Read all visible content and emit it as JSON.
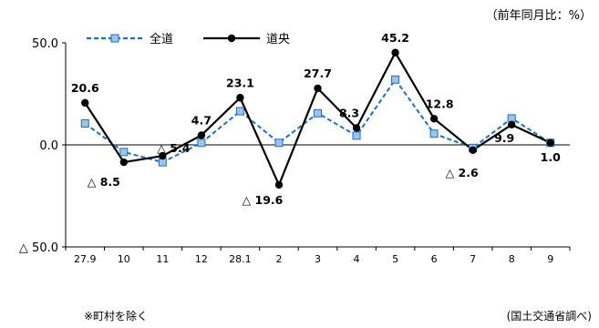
{
  "chart_data": {
    "type": "line",
    "unit_label": "（前年同月比：%）",
    "categories": [
      "27.9",
      "10",
      "11",
      "12",
      "28.1",
      "2",
      "3",
      "4",
      "5",
      "6",
      "7",
      "8",
      "9"
    ],
    "ylim": [
      -50,
      50
    ],
    "yticks": [
      {
        "value": 50,
        "label": "50.0"
      },
      {
        "value": 0,
        "label": "0.0"
      },
      {
        "value": -50,
        "label": "△ 50.0"
      }
    ],
    "series": [
      {
        "name": "全道",
        "color": "#1f6fc5",
        "marker_fill": "#9dc3e6",
        "style": "dashed",
        "values": [
          10.5,
          -3.5,
          -8.5,
          1.0,
          16.5,
          1.0,
          15.5,
          4.5,
          32.0,
          5.5,
          -1.5,
          13.0,
          1.0
        ]
      },
      {
        "name": "道央",
        "color": "#000000",
        "marker_fill": "#000000",
        "style": "solid",
        "values": [
          20.6,
          -8.5,
          -5.4,
          4.7,
          23.1,
          -19.6,
          27.7,
          8.3,
          45.2,
          12.8,
          -2.6,
          9.9,
          1.0
        ]
      }
    ],
    "data_labels": [
      "20.6",
      "△ 8.5",
      "△ 5.4",
      "4.7",
      "23.1",
      "△ 19.6",
      "27.7",
      "8.3",
      "45.2",
      "12.8",
      "△ 2.6",
      "9.9",
      "1.0"
    ],
    "legend_placement": "top-left"
  },
  "note": "※町村を除く",
  "source": "(国土交通省調べ)"
}
